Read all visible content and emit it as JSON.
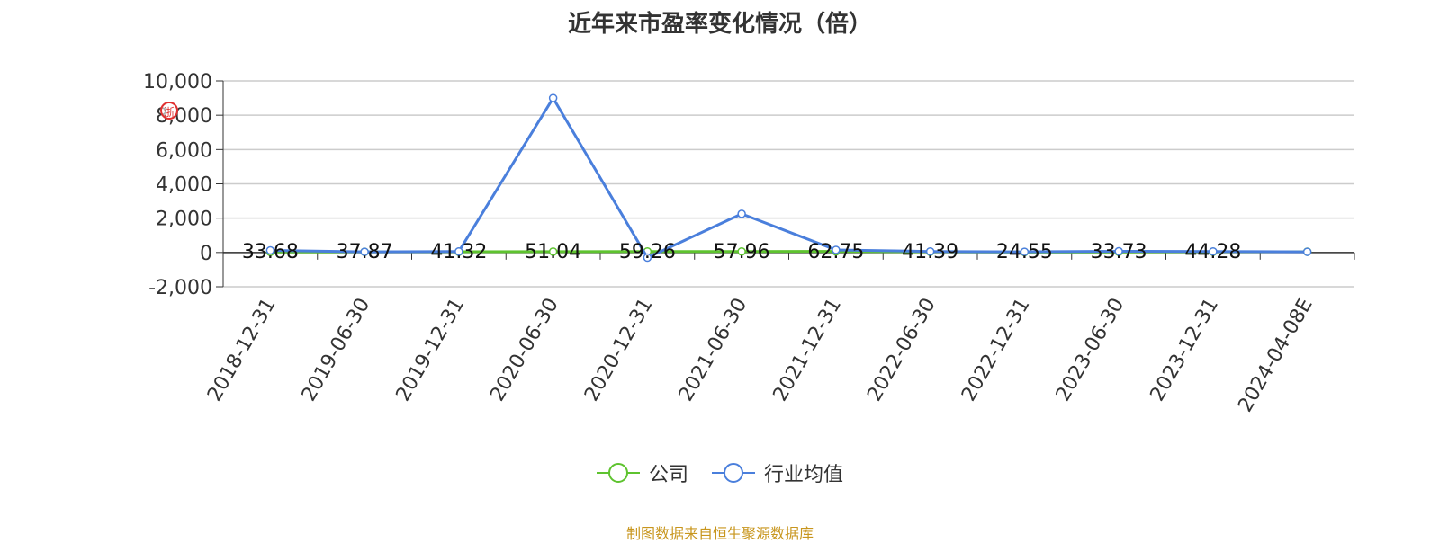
{
  "title": "近年来市盈率变化情况（倍）",
  "source": "制图数据来自恒生聚源数据库",
  "legend": [
    {
      "name": "公司",
      "color": "#5ec32f"
    },
    {
      "name": "行业均值",
      "color": "#4a7fdc"
    }
  ],
  "stamp_text": "浙",
  "chart_data": {
    "type": "line",
    "title": "近年来市盈率变化情况（倍）",
    "xlabel": "",
    "ylabel": "",
    "categories": [
      "2018-12-31",
      "2019-06-30",
      "2019-12-31",
      "2020-06-30",
      "2020-12-31",
      "2021-06-30",
      "2021-12-31",
      "2022-06-30",
      "2022-12-31",
      "2023-06-30",
      "2023-12-31",
      "2024-04-08E"
    ],
    "y_ticks": [
      "10,000",
      "8,000",
      "6,000",
      "4,000",
      "2,000",
      "0",
      "-2,000"
    ],
    "ylim": [
      -2000,
      10000
    ],
    "grid": true,
    "legend_position": "bottom",
    "series": [
      {
        "name": "公司",
        "color": "#5ec32f",
        "values": [
          33.68,
          37.87,
          41.32,
          51.04,
          59.26,
          57.96,
          62.75,
          41.39,
          24.55,
          33.73,
          44.28,
          44.28
        ],
        "labels": [
          "33.68",
          "37.87",
          "41.32",
          "51.04",
          "59.26",
          "57.96",
          "62.75",
          "41.39",
          "24.55",
          "33.73",
          "44.28",
          ""
        ]
      },
      {
        "name": "行业均值",
        "color": "#4a7fdc",
        "values": [
          120,
          40,
          60,
          9000,
          -300,
          2250,
          150,
          60,
          40,
          70,
          60,
          40
        ]
      }
    ]
  }
}
